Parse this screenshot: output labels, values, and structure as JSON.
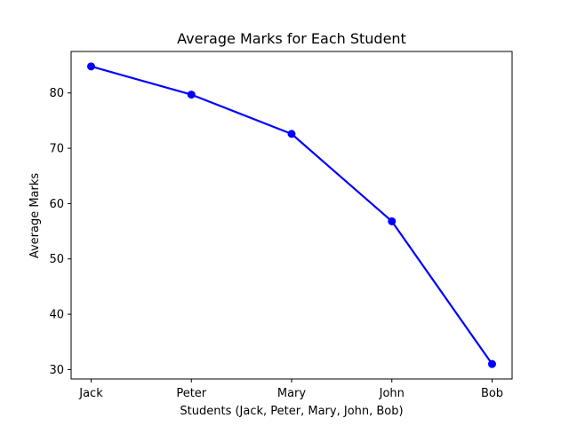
{
  "chart_data": {
    "type": "line",
    "title": "Average Marks for Each Student",
    "xlabel": "Students (Jack, Peter, Mary, John, Bob)",
    "ylabel": "Average Marks",
    "categories": [
      "Jack",
      "Peter",
      "Mary",
      "John",
      "Bob"
    ],
    "series": [
      {
        "values": [
          84.8,
          79.7,
          72.6,
          56.8,
          31.0
        ],
        "color": "#0000ff",
        "marker": "circle"
      }
    ],
    "ylim": [
      28.3,
      87.5
    ],
    "yticks": [
      30,
      40,
      50,
      60,
      70,
      80
    ],
    "grid": false,
    "legend": "none"
  }
}
